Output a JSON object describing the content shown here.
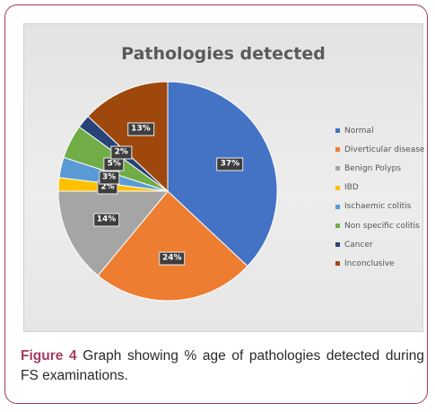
{
  "figure_caption": {
    "label": "Figure 4",
    "text": "Graph showing % age of pathologies detected during FS examinations."
  },
  "colors": {
    "frame_border": "#a63a62",
    "caption_label": "#a63a62"
  },
  "chart_data": {
    "type": "pie",
    "title": "Pathologies detected",
    "legend_position": "right",
    "categories": [
      "Normal",
      "Diverticular disease",
      "Benign Polyps",
      "IBD",
      "Ischaemic colitis",
      "Non specific colitis",
      "Cancer",
      "Inconclusive"
    ],
    "values": [
      37,
      24,
      14,
      2,
      3,
      5,
      2,
      13
    ],
    "value_labels": [
      "37%",
      "24%",
      "14%",
      "2%",
      "3%",
      "5%",
      "2%",
      "13%"
    ],
    "colors": [
      "#4472c4",
      "#ed7d31",
      "#a5a5a5",
      "#ffc000",
      "#5b9bd5",
      "#70ad47",
      "#264478",
      "#9e480e"
    ]
  }
}
